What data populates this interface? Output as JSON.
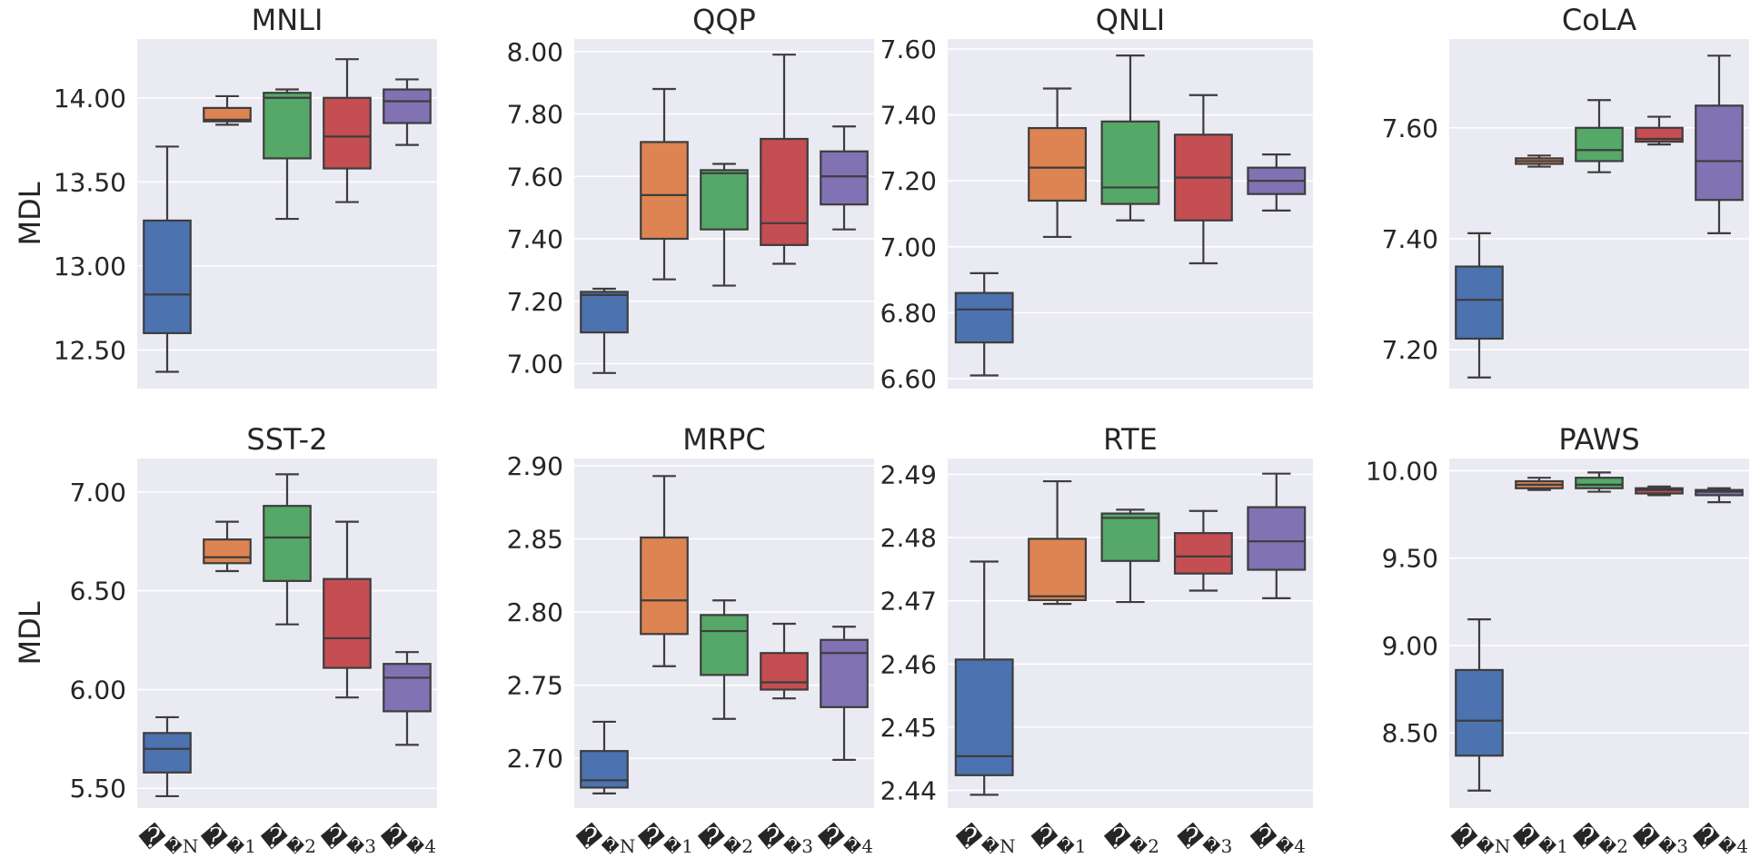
{
  "figure": {
    "y_label": "MDL",
    "box_colors": [
      "#4c72b0",
      "#dd8452",
      "#55a868",
      "#c44e52",
      "#8172b3"
    ]
  },
  "chart_data": [
    {
      "type": "boxplot",
      "title": "MNLI",
      "ylabel": "MDL",
      "ylim": [
        12.27,
        14.35
      ],
      "yticks": [
        12.5,
        13.0,
        13.5,
        14.0
      ],
      "ytick_labels": [
        "12.50",
        "13.00",
        "13.50",
        "14.00"
      ],
      "categories": [
        "𝓜N",
        "𝓜1",
        "𝓜2",
        "𝓜3",
        "𝓜4"
      ],
      "boxes": [
        {
          "min": 12.37,
          "q1": 12.6,
          "median": 12.83,
          "q3": 13.27,
          "max": 13.71
        },
        {
          "min": 13.84,
          "q1": 13.86,
          "median": 13.87,
          "q3": 13.94,
          "max": 14.01
        },
        {
          "min": 13.28,
          "q1": 13.64,
          "median": 14.0,
          "q3": 14.03,
          "max": 14.05
        },
        {
          "min": 13.38,
          "q1": 13.58,
          "median": 13.77,
          "q3": 14.0,
          "max": 14.23
        },
        {
          "min": 13.72,
          "q1": 13.85,
          "median": 13.98,
          "q3": 14.05,
          "max": 14.11
        }
      ]
    },
    {
      "type": "boxplot",
      "title": "QQP",
      "ylabel": "",
      "ylim": [
        6.92,
        8.04
      ],
      "yticks": [
        7.0,
        7.2,
        7.4,
        7.6,
        7.8,
        8.0
      ],
      "ytick_labels": [
        "7.00",
        "7.20",
        "7.40",
        "7.60",
        "7.80",
        "8.00"
      ],
      "categories": [
        "𝓜N",
        "𝓜1",
        "𝓜2",
        "𝓜3",
        "𝓜4"
      ],
      "boxes": [
        {
          "min": 6.97,
          "q1": 7.1,
          "median": 7.22,
          "q3": 7.23,
          "max": 7.24
        },
        {
          "min": 7.27,
          "q1": 7.4,
          "median": 7.54,
          "q3": 7.71,
          "max": 7.88
        },
        {
          "min": 7.25,
          "q1": 7.43,
          "median": 7.61,
          "q3": 7.62,
          "max": 7.64
        },
        {
          "min": 7.32,
          "q1": 7.38,
          "median": 7.45,
          "q3": 7.72,
          "max": 7.99
        },
        {
          "min": 7.43,
          "q1": 7.51,
          "median": 7.6,
          "q3": 7.68,
          "max": 7.76
        }
      ]
    },
    {
      "type": "boxplot",
      "title": "QNLI",
      "ylabel": "",
      "ylim": [
        6.57,
        7.63
      ],
      "yticks": [
        6.6,
        6.8,
        7.0,
        7.2,
        7.4,
        7.6
      ],
      "ytick_labels": [
        "6.60",
        "6.80",
        "7.00",
        "7.20",
        "7.40",
        "7.60"
      ],
      "categories": [
        "𝓜N",
        "𝓜1",
        "𝓜2",
        "𝓜3",
        "𝓜4"
      ],
      "boxes": [
        {
          "min": 6.61,
          "q1": 6.71,
          "median": 6.81,
          "q3": 6.86,
          "max": 6.92
        },
        {
          "min": 7.03,
          "q1": 7.14,
          "median": 7.24,
          "q3": 7.36,
          "max": 7.48
        },
        {
          "min": 7.08,
          "q1": 7.13,
          "median": 7.18,
          "q3": 7.38,
          "max": 7.58
        },
        {
          "min": 6.95,
          "q1": 7.08,
          "median": 7.21,
          "q3": 7.34,
          "max": 7.46
        },
        {
          "min": 7.11,
          "q1": 7.16,
          "median": 7.2,
          "q3": 7.24,
          "max": 7.28
        }
      ]
    },
    {
      "type": "boxplot",
      "title": "CoLA",
      "ylabel": "",
      "ylim": [
        7.13,
        7.76
      ],
      "yticks": [
        7.2,
        7.4,
        7.6
      ],
      "ytick_labels": [
        "7.20",
        "7.40",
        "7.60"
      ],
      "categories": [
        "𝓜N",
        "𝓜1",
        "𝓜2",
        "𝓜3",
        "𝓜4"
      ],
      "boxes": [
        {
          "min": 7.15,
          "q1": 7.22,
          "median": 7.29,
          "q3": 7.35,
          "max": 7.41
        },
        {
          "min": 7.53,
          "q1": 7.535,
          "median": 7.54,
          "q3": 7.545,
          "max": 7.55
        },
        {
          "min": 7.52,
          "q1": 7.54,
          "median": 7.56,
          "q3": 7.6,
          "max": 7.65
        },
        {
          "min": 7.57,
          "q1": 7.575,
          "median": 7.58,
          "q3": 7.6,
          "max": 7.62
        },
        {
          "min": 7.41,
          "q1": 7.47,
          "median": 7.54,
          "q3": 7.64,
          "max": 7.73
        }
      ]
    },
    {
      "type": "boxplot",
      "title": "SST-2",
      "ylabel": "MDL",
      "ylim": [
        5.4,
        7.17
      ],
      "yticks": [
        5.5,
        6.0,
        6.5,
        7.0
      ],
      "ytick_labels": [
        "5.50",
        "6.00",
        "6.50",
        "7.00"
      ],
      "categories": [
        "𝓜N",
        "𝓜1",
        "𝓜2",
        "𝓜3",
        "𝓜4"
      ],
      "boxes": [
        {
          "min": 5.46,
          "q1": 5.58,
          "median": 5.7,
          "q3": 5.78,
          "max": 5.86
        },
        {
          "min": 6.6,
          "q1": 6.64,
          "median": 6.67,
          "q3": 6.76,
          "max": 6.85
        },
        {
          "min": 6.33,
          "q1": 6.55,
          "median": 6.77,
          "q3": 6.93,
          "max": 7.09
        },
        {
          "min": 5.96,
          "q1": 6.11,
          "median": 6.26,
          "q3": 6.56,
          "max": 6.85
        },
        {
          "min": 5.72,
          "q1": 5.89,
          "median": 6.06,
          "q3": 6.13,
          "max": 6.19
        }
      ]
    },
    {
      "type": "boxplot",
      "title": "MRPC",
      "ylabel": "",
      "ylim": [
        2.666,
        2.905
      ],
      "yticks": [
        2.7,
        2.75,
        2.8,
        2.85,
        2.9
      ],
      "ytick_labels": [
        "2.70",
        "2.75",
        "2.80",
        "2.85",
        "2.90"
      ],
      "categories": [
        "𝓜N",
        "𝓜1",
        "𝓜2",
        "𝓜3",
        "𝓜4"
      ],
      "boxes": [
        {
          "min": 2.676,
          "q1": 2.68,
          "median": 2.685,
          "q3": 2.705,
          "max": 2.725
        },
        {
          "min": 2.763,
          "q1": 2.785,
          "median": 2.808,
          "q3": 2.851,
          "max": 2.893
        },
        {
          "min": 2.727,
          "q1": 2.757,
          "median": 2.787,
          "q3": 2.798,
          "max": 2.808
        },
        {
          "min": 2.741,
          "q1": 2.747,
          "median": 2.752,
          "q3": 2.772,
          "max": 2.792
        },
        {
          "min": 2.699,
          "q1": 2.735,
          "median": 2.772,
          "q3": 2.781,
          "max": 2.79
        }
      ]
    },
    {
      "type": "boxplot",
      "title": "RTE",
      "ylabel": "",
      "ylim": [
        2.4372,
        2.4925
      ],
      "yticks": [
        2.44,
        2.45,
        2.46,
        2.47,
        2.48,
        2.49
      ],
      "ytick_labels": [
        "2.44",
        "2.45",
        "2.46",
        "2.47",
        "2.48",
        "2.49"
      ],
      "categories": [
        "𝓜N",
        "𝓜1",
        "𝓜2",
        "𝓜3",
        "𝓜4"
      ],
      "boxes": [
        {
          "min": 2.4393,
          "q1": 2.4424,
          "median": 2.4454,
          "q3": 2.4607,
          "max": 2.4762
        },
        {
          "min": 2.4695,
          "q1": 2.4701,
          "median": 2.4707,
          "q3": 2.4798,
          "max": 2.4889
        },
        {
          "min": 2.4698,
          "q1": 2.4763,
          "median": 2.4831,
          "q3": 2.4838,
          "max": 2.4844
        },
        {
          "min": 2.4716,
          "q1": 2.4743,
          "median": 2.477,
          "q3": 2.4807,
          "max": 2.4842
        },
        {
          "min": 2.4704,
          "q1": 2.4749,
          "median": 2.4794,
          "q3": 2.4848,
          "max": 2.4901
        }
      ]
    },
    {
      "type": "boxplot",
      "title": "PAWS",
      "ylabel": "",
      "ylim": [
        8.07,
        10.07
      ],
      "yticks": [
        8.5,
        9.0,
        9.5,
        10.0
      ],
      "ytick_labels": [
        "8.50",
        "9.00",
        "9.50",
        "10.00"
      ],
      "categories": [
        "𝓜N",
        "𝓜1",
        "𝓜2",
        "𝓜3",
        "𝓜4"
      ],
      "boxes": [
        {
          "min": 8.17,
          "q1": 8.37,
          "median": 8.57,
          "q3": 8.86,
          "max": 9.15
        },
        {
          "min": 9.89,
          "q1": 9.9,
          "median": 9.92,
          "q3": 9.94,
          "max": 9.96
        },
        {
          "min": 9.88,
          "q1": 9.9,
          "median": 9.92,
          "q3": 9.96,
          "max": 9.99
        },
        {
          "min": 9.86,
          "q1": 9.87,
          "median": 9.89,
          "q3": 9.9,
          "max": 9.91
        },
        {
          "min": 9.82,
          "q1": 9.86,
          "median": 9.88,
          "q3": 9.89,
          "max": 9.9
        }
      ]
    }
  ]
}
